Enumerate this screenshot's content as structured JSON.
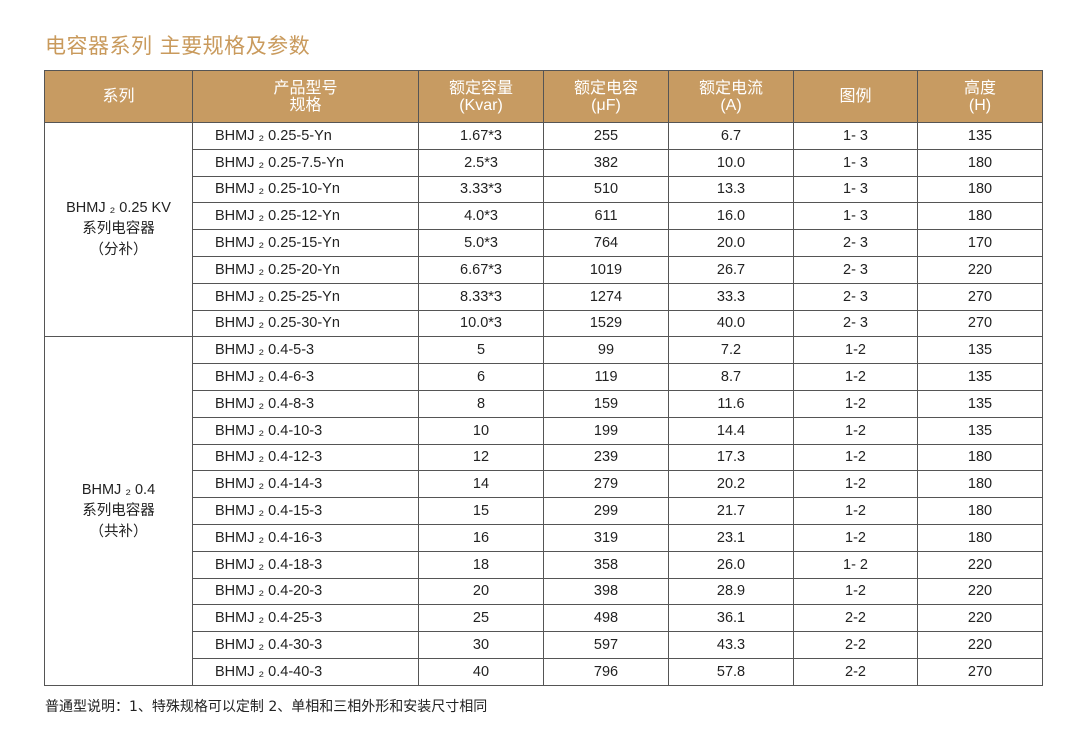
{
  "title": "电容器系列 主要规格及参数",
  "headers": {
    "series": "系列",
    "model_line1": "产品型号",
    "model_line2": "规格",
    "capacity_line1": "额定容量",
    "capacity_line2": "(Kvar)",
    "capacitance_line1": "额定电容",
    "capacitance_line2": "(μF)",
    "current_line1": "额定电流",
    "current_line2": "(A)",
    "figure": "图例",
    "height_line1": "高度",
    "height_line2": "(H)"
  },
  "groups": [
    {
      "label_line1": "BHMJ ₂ 0.25 KV",
      "label_line2": "系列电容器",
      "label_line3": "（分补）",
      "rows": [
        {
          "model": "BHMJ ₂ 0.25-5-Yn",
          "capacity": "1.67*3",
          "capacitance": "255",
          "current": "6.7",
          "figure": "1- 3",
          "height": "135"
        },
        {
          "model": "BHMJ ₂ 0.25-7.5-Yn",
          "capacity": "2.5*3",
          "capacitance": "382",
          "current": "10.0",
          "figure": "1- 3",
          "height": "180"
        },
        {
          "model": "BHMJ ₂ 0.25-10-Yn",
          "capacity": "3.33*3",
          "capacitance": "510",
          "current": "13.3",
          "figure": "1- 3",
          "height": "180"
        },
        {
          "model": "BHMJ ₂ 0.25-12-Yn",
          "capacity": "4.0*3",
          "capacitance": "611",
          "current": "16.0",
          "figure": "1- 3",
          "height": "180"
        },
        {
          "model": "BHMJ ₂ 0.25-15-Yn",
          "capacity": "5.0*3",
          "capacitance": "764",
          "current": "20.0",
          "figure": "2- 3",
          "height": "170"
        },
        {
          "model": "BHMJ ₂ 0.25-20-Yn",
          "capacity": "6.67*3",
          "capacitance": "1019",
          "current": "26.7",
          "figure": "2- 3",
          "height": "220"
        },
        {
          "model": "BHMJ ₂ 0.25-25-Yn",
          "capacity": "8.33*3",
          "capacitance": "1274",
          "current": "33.3",
          "figure": "2- 3",
          "height": "270"
        },
        {
          "model": "BHMJ ₂ 0.25-30-Yn",
          "capacity": "10.0*3",
          "capacitance": "1529",
          "current": "40.0",
          "figure": "2- 3",
          "height": "270"
        }
      ]
    },
    {
      "label_line1": "BHMJ ₂ 0.4",
      "label_line2": "系列电容器",
      "label_line3": "（共补）",
      "rows": [
        {
          "model": "BHMJ ₂ 0.4-5-3",
          "capacity": "5",
          "capacitance": "99",
          "current": "7.2",
          "figure": "1-2",
          "height": "135"
        },
        {
          "model": "BHMJ ₂ 0.4-6-3",
          "capacity": "6",
          "capacitance": "119",
          "current": "8.7",
          "figure": "1-2",
          "height": "135"
        },
        {
          "model": "BHMJ ₂ 0.4-8-3",
          "capacity": "8",
          "capacitance": "159",
          "current": "11.6",
          "figure": "1-2",
          "height": "135"
        },
        {
          "model": "BHMJ ₂ 0.4-10-3",
          "capacity": "10",
          "capacitance": "199",
          "current": "14.4",
          "figure": "1-2",
          "height": "135"
        },
        {
          "model": "BHMJ ₂ 0.4-12-3",
          "capacity": "12",
          "capacitance": "239",
          "current": "17.3",
          "figure": "1-2",
          "height": "180"
        },
        {
          "model": "BHMJ ₂ 0.4-14-3",
          "capacity": "14",
          "capacitance": "279",
          "current": "20.2",
          "figure": "1-2",
          "height": "180"
        },
        {
          "model": "BHMJ ₂ 0.4-15-3",
          "capacity": "15",
          "capacitance": "299",
          "current": "21.7",
          "figure": "1-2",
          "height": "180"
        },
        {
          "model": "BHMJ ₂ 0.4-16-3",
          "capacity": "16",
          "capacitance": "319",
          "current": "23.1",
          "figure": "1-2",
          "height": "180"
        },
        {
          "model": "BHMJ ₂ 0.4-18-3",
          "capacity": "18",
          "capacitance": "358",
          "current": "26.0",
          "figure": "1- 2",
          "height": "220"
        },
        {
          "model": "BHMJ ₂ 0.4-20-3",
          "capacity": "20",
          "capacitance": "398",
          "current": "28.9",
          "figure": "1-2",
          "height": "220"
        },
        {
          "model": "BHMJ ₂ 0.4-25-3",
          "capacity": "25",
          "capacitance": "498",
          "current": "36.1",
          "figure": "2-2",
          "height": "220"
        },
        {
          "model": "BHMJ ₂ 0.4-30-3",
          "capacity": "30",
          "capacitance": "597",
          "current": "43.3",
          "figure": "2-2",
          "height": "220"
        },
        {
          "model": "BHMJ ₂ 0.4-40-3",
          "capacity": "40",
          "capacitance": "796",
          "current": "57.8",
          "figure": "2-2",
          "height": "270"
        }
      ]
    }
  ],
  "footnote": "普通型说明：1、特殊规格可以定制    2、单相和三相外形和安装尺寸相同"
}
